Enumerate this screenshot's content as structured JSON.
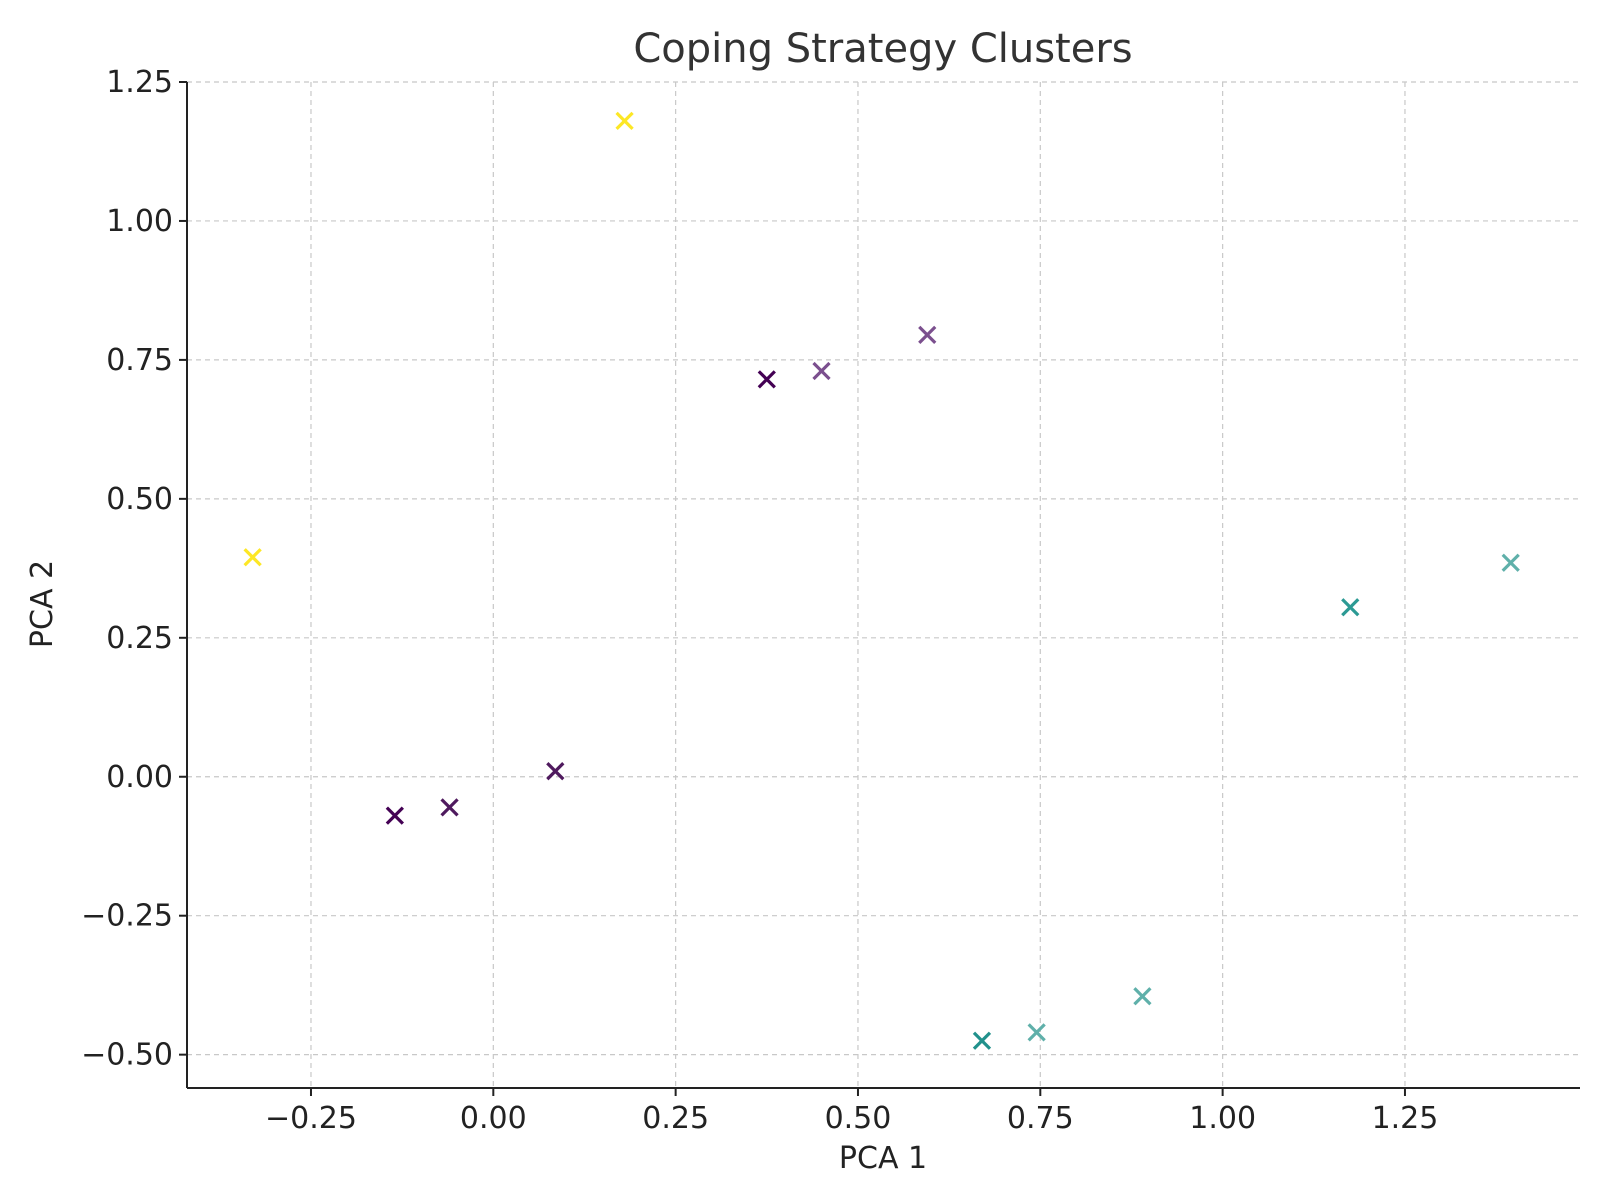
{
  "chart_data": {
    "type": "scatter",
    "title": "Coping Strategy Clusters",
    "xlabel": "PCA 1",
    "ylabel": "PCA 2",
    "xlim": [
      -0.42,
      1.49
    ],
    "ylim": [
      -0.56,
      1.25
    ],
    "xticks": [
      -0.25,
      0.0,
      0.25,
      0.5,
      0.75,
      1.0,
      1.25
    ],
    "yticks": [
      -0.5,
      -0.25,
      0.0,
      0.25,
      0.5,
      0.75,
      1.0,
      1.25
    ],
    "xtick_labels": [
      "−0.25",
      "0.00",
      "0.25",
      "0.50",
      "0.75",
      "1.00",
      "1.25"
    ],
    "ytick_labels": [
      "−0.50",
      "−0.25",
      "0.00",
      "0.25",
      "0.50",
      "0.75",
      "1.00",
      "1.25"
    ],
    "grid": true,
    "marker": "x",
    "points": [
      {
        "x": -0.33,
        "y": 0.395,
        "color": "#fde725"
      },
      {
        "x": 0.18,
        "y": 1.18,
        "color": "#fde725"
      },
      {
        "x": 0.375,
        "y": 0.715,
        "color": "#440154"
      },
      {
        "x": 0.45,
        "y": 0.73,
        "color": "#7b4f8e"
      },
      {
        "x": 0.595,
        "y": 0.795,
        "color": "#7b4f8e"
      },
      {
        "x": -0.135,
        "y": -0.07,
        "color": "#440154"
      },
      {
        "x": -0.06,
        "y": -0.055,
        "color": "#4f1a5e"
      },
      {
        "x": 0.085,
        "y": 0.01,
        "color": "#4f1a5e"
      },
      {
        "x": 0.67,
        "y": -0.475,
        "color": "#21918c"
      },
      {
        "x": 0.745,
        "y": -0.46,
        "color": "#5fb0aa"
      },
      {
        "x": 0.89,
        "y": -0.395,
        "color": "#5fb0aa"
      },
      {
        "x": 1.175,
        "y": 0.305,
        "color": "#2c9a94"
      },
      {
        "x": 1.395,
        "y": 0.385,
        "color": "#5fb0aa"
      }
    ]
  }
}
